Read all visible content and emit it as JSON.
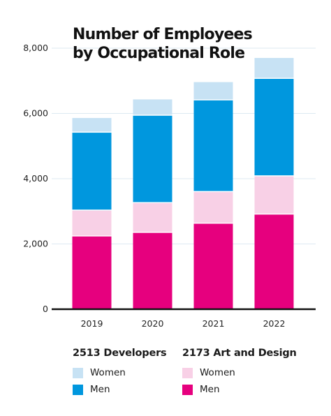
{
  "chart_data": {
    "type": "bar",
    "stacked": true,
    "title_lines": [
      "Number of Employees",
      "by Occupational Role"
    ],
    "categories": [
      "2019",
      "2020",
      "2021",
      "2022"
    ],
    "ylim": [
      0,
      8000
    ],
    "yticks": [
      0,
      2000,
      4000,
      6000,
      8000
    ],
    "ytick_labels": [
      "0",
      "2,000",
      "4,000",
      "6,000",
      "8,000"
    ],
    "grid": true,
    "series": [
      {
        "name": "Men",
        "group": "Art and Design",
        "color": "#e6007e",
        "values": [
          2230,
          2340,
          2620,
          2900
        ]
      },
      {
        "name": "Women",
        "group": "Art and Design",
        "color": "#f8d0e6",
        "values": [
          790,
          910,
          970,
          1170
        ]
      },
      {
        "name": "Men",
        "group": "Developers",
        "color": "#0097de",
        "values": [
          2390,
          2680,
          2810,
          2990
        ]
      },
      {
        "name": "Women",
        "group": "Developers",
        "color": "#c7e2f4",
        "values": [
          450,
          500,
          560,
          640
        ]
      }
    ],
    "legend": {
      "placement": "bottom",
      "groups": [
        {
          "heading": "2513 Developers",
          "items": [
            {
              "label": "Women",
              "color": "#c7e2f4"
            },
            {
              "label": "Men",
              "color": "#0097de"
            }
          ]
        },
        {
          "heading": "2173 Art and Design",
          "items": [
            {
              "label": "Women",
              "color": "#f8d0e6"
            },
            {
              "label": "Men",
              "color": "#e6007e"
            }
          ]
        }
      ]
    }
  }
}
